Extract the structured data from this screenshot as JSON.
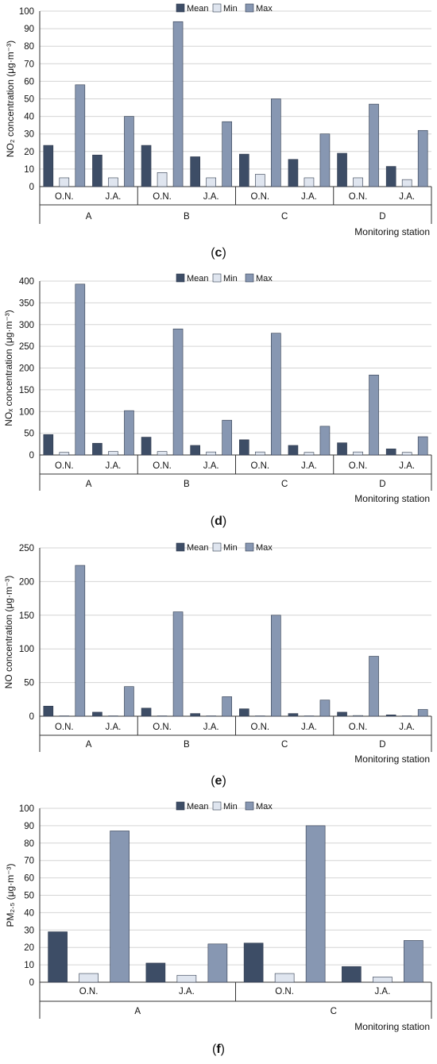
{
  "legend": [
    {
      "name": "Mean",
      "color": "#3d4d66"
    },
    {
      "name": "Min",
      "color": "#dfe5ef"
    },
    {
      "name": "Max",
      "color": "#8797b2"
    }
  ],
  "chart_data": [
    {
      "type": "bar",
      "panel_label": "c",
      "ylabel": "NO₂ concentration (μg·m⁻³)",
      "xlabel": "Monitoring station",
      "ylim": [
        0,
        100
      ],
      "yticks": [
        0,
        10,
        20,
        30,
        40,
        50,
        60,
        70,
        80,
        90,
        100
      ],
      "grid": true,
      "legend_position": "top-center",
      "groups": [
        "A",
        "B",
        "C",
        "D"
      ],
      "categories": [
        "O.N.",
        "J.A.",
        "O.N.",
        "J.A.",
        "O.N.",
        "J.A.",
        "O.N.",
        "J.A."
      ],
      "series": [
        {
          "name": "Mean",
          "values": [
            23.5,
            18,
            23.5,
            17,
            18.5,
            15.5,
            19,
            11.5
          ]
        },
        {
          "name": "Min",
          "values": [
            5,
            5,
            8,
            5,
            7,
            5,
            5,
            4
          ]
        },
        {
          "name": "Max",
          "values": [
            58,
            40,
            94,
            37,
            50,
            30,
            47,
            32
          ]
        }
      ]
    },
    {
      "type": "bar",
      "panel_label": "d",
      "ylabel": "NOₓ concentration (μg·m⁻³)",
      "xlabel": "Monitoring station",
      "ylim": [
        0,
        400
      ],
      "yticks": [
        0,
        50,
        100,
        150,
        200,
        250,
        300,
        350,
        400
      ],
      "grid": true,
      "legend_position": "top-center",
      "groups": [
        "A",
        "B",
        "C",
        "D"
      ],
      "categories": [
        "O.N.",
        "J.A.",
        "O.N.",
        "J.A.",
        "O.N.",
        "J.A.",
        "O.N.",
        "J.A."
      ],
      "series": [
        {
          "name": "Mean",
          "values": [
            47,
            27,
            41,
            22,
            35,
            22,
            28,
            14
          ]
        },
        {
          "name": "Min",
          "values": [
            6,
            8,
            8,
            7,
            7,
            6,
            7,
            6
          ]
        },
        {
          "name": "Max",
          "values": [
            393,
            102,
            290,
            80,
            280,
            66,
            184,
            42
          ]
        }
      ]
    },
    {
      "type": "bar",
      "panel_label": "e",
      "ylabel": "NO concentration (μg·m⁻³)",
      "xlabel": "Monitoring station",
      "ylim": [
        0,
        250
      ],
      "yticks": [
        0,
        50,
        100,
        150,
        200,
        250
      ],
      "grid": true,
      "legend_position": "top-center",
      "groups": [
        "A",
        "B",
        "C",
        "D"
      ],
      "categories": [
        "O.N.",
        "J.A.",
        "O.N.",
        "J.A.",
        "O.N.",
        "J.A.",
        "O.N.",
        "J.A."
      ],
      "series": [
        {
          "name": "Mean",
          "values": [
            15,
            6,
            12,
            4,
            11,
            4,
            6,
            2
          ]
        },
        {
          "name": "Min",
          "values": [
            0.5,
            0.5,
            0.5,
            0.5,
            0.5,
            0.5,
            1,
            0.5
          ]
        },
        {
          "name": "Max",
          "values": [
            224,
            44,
            155,
            29,
            150,
            24,
            89,
            10
          ]
        }
      ]
    },
    {
      "type": "bar",
      "panel_label": "f",
      "ylabel": "PM₂.₅ (μg·m⁻³)",
      "xlabel": "Monitoring station",
      "ylim": [
        0,
        100
      ],
      "yticks": [
        0,
        10,
        20,
        30,
        40,
        50,
        60,
        70,
        80,
        90,
        100
      ],
      "grid": true,
      "legend_position": "top-center",
      "groups": [
        "A",
        "C"
      ],
      "categories": [
        "O.N.",
        "J.A.",
        "O.N.",
        "J.A."
      ],
      "series": [
        {
          "name": "Mean",
          "values": [
            29,
            11,
            22.5,
            9
          ]
        },
        {
          "name": "Min",
          "values": [
            5,
            4,
            5,
            3
          ]
        },
        {
          "name": "Max",
          "values": [
            87,
            22,
            90,
            24
          ]
        }
      ]
    }
  ]
}
